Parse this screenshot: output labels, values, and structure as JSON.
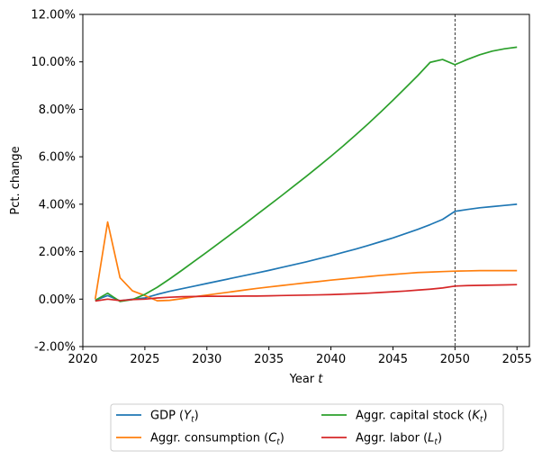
{
  "chart_data": {
    "type": "line",
    "title": "",
    "xlabel": "Year t",
    "ylabel": "Pct. change",
    "xlim": [
      2020,
      2056
    ],
    "ylim": [
      -2.0,
      12.0
    ],
    "xticks": [
      2020,
      2025,
      2030,
      2035,
      2040,
      2045,
      2050,
      2055
    ],
    "xtick_labels": [
      "2020",
      "2025",
      "2030",
      "2035",
      "2040",
      "2045",
      "2050",
      "2055"
    ],
    "yticks": [
      -2,
      0,
      2,
      4,
      6,
      8,
      10,
      12
    ],
    "ytick_labels": [
      "-2.00%",
      "0.00%",
      "2.00%",
      "4.00%",
      "6.00%",
      "8.00%",
      "10.00%",
      "12.00%"
    ],
    "vline_x": 2050,
    "grid": false,
    "legend_position": "below",
    "legend_columns": 2,
    "x": [
      2021,
      2022,
      2023,
      2024,
      2025,
      2026,
      2027,
      2028,
      2029,
      2030,
      2031,
      2032,
      2033,
      2034,
      2035,
      2036,
      2037,
      2038,
      2039,
      2040,
      2041,
      2042,
      2043,
      2044,
      2045,
      2046,
      2047,
      2048,
      2049,
      2050,
      2051,
      2052,
      2053,
      2054,
      2055
    ],
    "series": [
      {
        "name": "GDP (Y_t)",
        "legend_main": "GDP (",
        "legend_var": "Y",
        "legend_sub": "t",
        "legend_end": ")",
        "color": "#1f77b4",
        "values": [
          -0.05,
          0.15,
          -0.07,
          0.0,
          0.05,
          0.2,
          0.33,
          0.44,
          0.55,
          0.66,
          0.77,
          0.88,
          0.99,
          1.1,
          1.21,
          1.33,
          1.45,
          1.57,
          1.7,
          1.83,
          1.97,
          2.11,
          2.26,
          2.42,
          2.58,
          2.76,
          2.94,
          3.14,
          3.36,
          3.7,
          3.78,
          3.85,
          3.9,
          3.95,
          4.0
        ]
      },
      {
        "name": "Aggr. consumption (C_t)",
        "legend_main": "Aggr. consumption (",
        "legend_var": "C",
        "legend_sub": "t",
        "legend_end": ")",
        "color": "#ff7f0e",
        "values": [
          0.0,
          3.25,
          0.9,
          0.35,
          0.15,
          -0.07,
          -0.05,
          0.02,
          0.1,
          0.17,
          0.24,
          0.31,
          0.38,
          0.45,
          0.51,
          0.57,
          0.63,
          0.69,
          0.74,
          0.8,
          0.85,
          0.9,
          0.95,
          1.0,
          1.04,
          1.08,
          1.12,
          1.14,
          1.16,
          1.18,
          1.19,
          1.2,
          1.2,
          1.2,
          1.2
        ]
      },
      {
        "name": "Aggr. capital stock (K_t)",
        "legend_main": "Aggr. capital stock (",
        "legend_var": "K",
        "legend_sub": "t",
        "legend_end": ")",
        "color": "#2ca02c",
        "values": [
          -0.05,
          0.25,
          -0.1,
          -0.02,
          0.2,
          0.5,
          0.85,
          1.22,
          1.6,
          1.98,
          2.37,
          2.76,
          3.15,
          3.55,
          3.95,
          4.35,
          4.76,
          5.17,
          5.59,
          6.02,
          6.46,
          6.92,
          7.39,
          7.88,
          8.38,
          8.9,
          9.42,
          9.98,
          10.1,
          9.88,
          10.1,
          10.3,
          10.45,
          10.55,
          10.62
        ]
      },
      {
        "name": "Aggr. labor (L_t)",
        "legend_main": "Aggr. labor (",
        "legend_var": "L",
        "legend_sub": "t",
        "legend_end": ")",
        "color": "#d62728",
        "values": [
          -0.08,
          0.0,
          -0.06,
          -0.02,
          0.0,
          0.05,
          0.08,
          0.1,
          0.11,
          0.12,
          0.12,
          0.12,
          0.13,
          0.13,
          0.14,
          0.15,
          0.16,
          0.17,
          0.18,
          0.19,
          0.21,
          0.23,
          0.25,
          0.28,
          0.31,
          0.34,
          0.38,
          0.42,
          0.47,
          0.55,
          0.57,
          0.58,
          0.59,
          0.6,
          0.61
        ]
      }
    ]
  }
}
